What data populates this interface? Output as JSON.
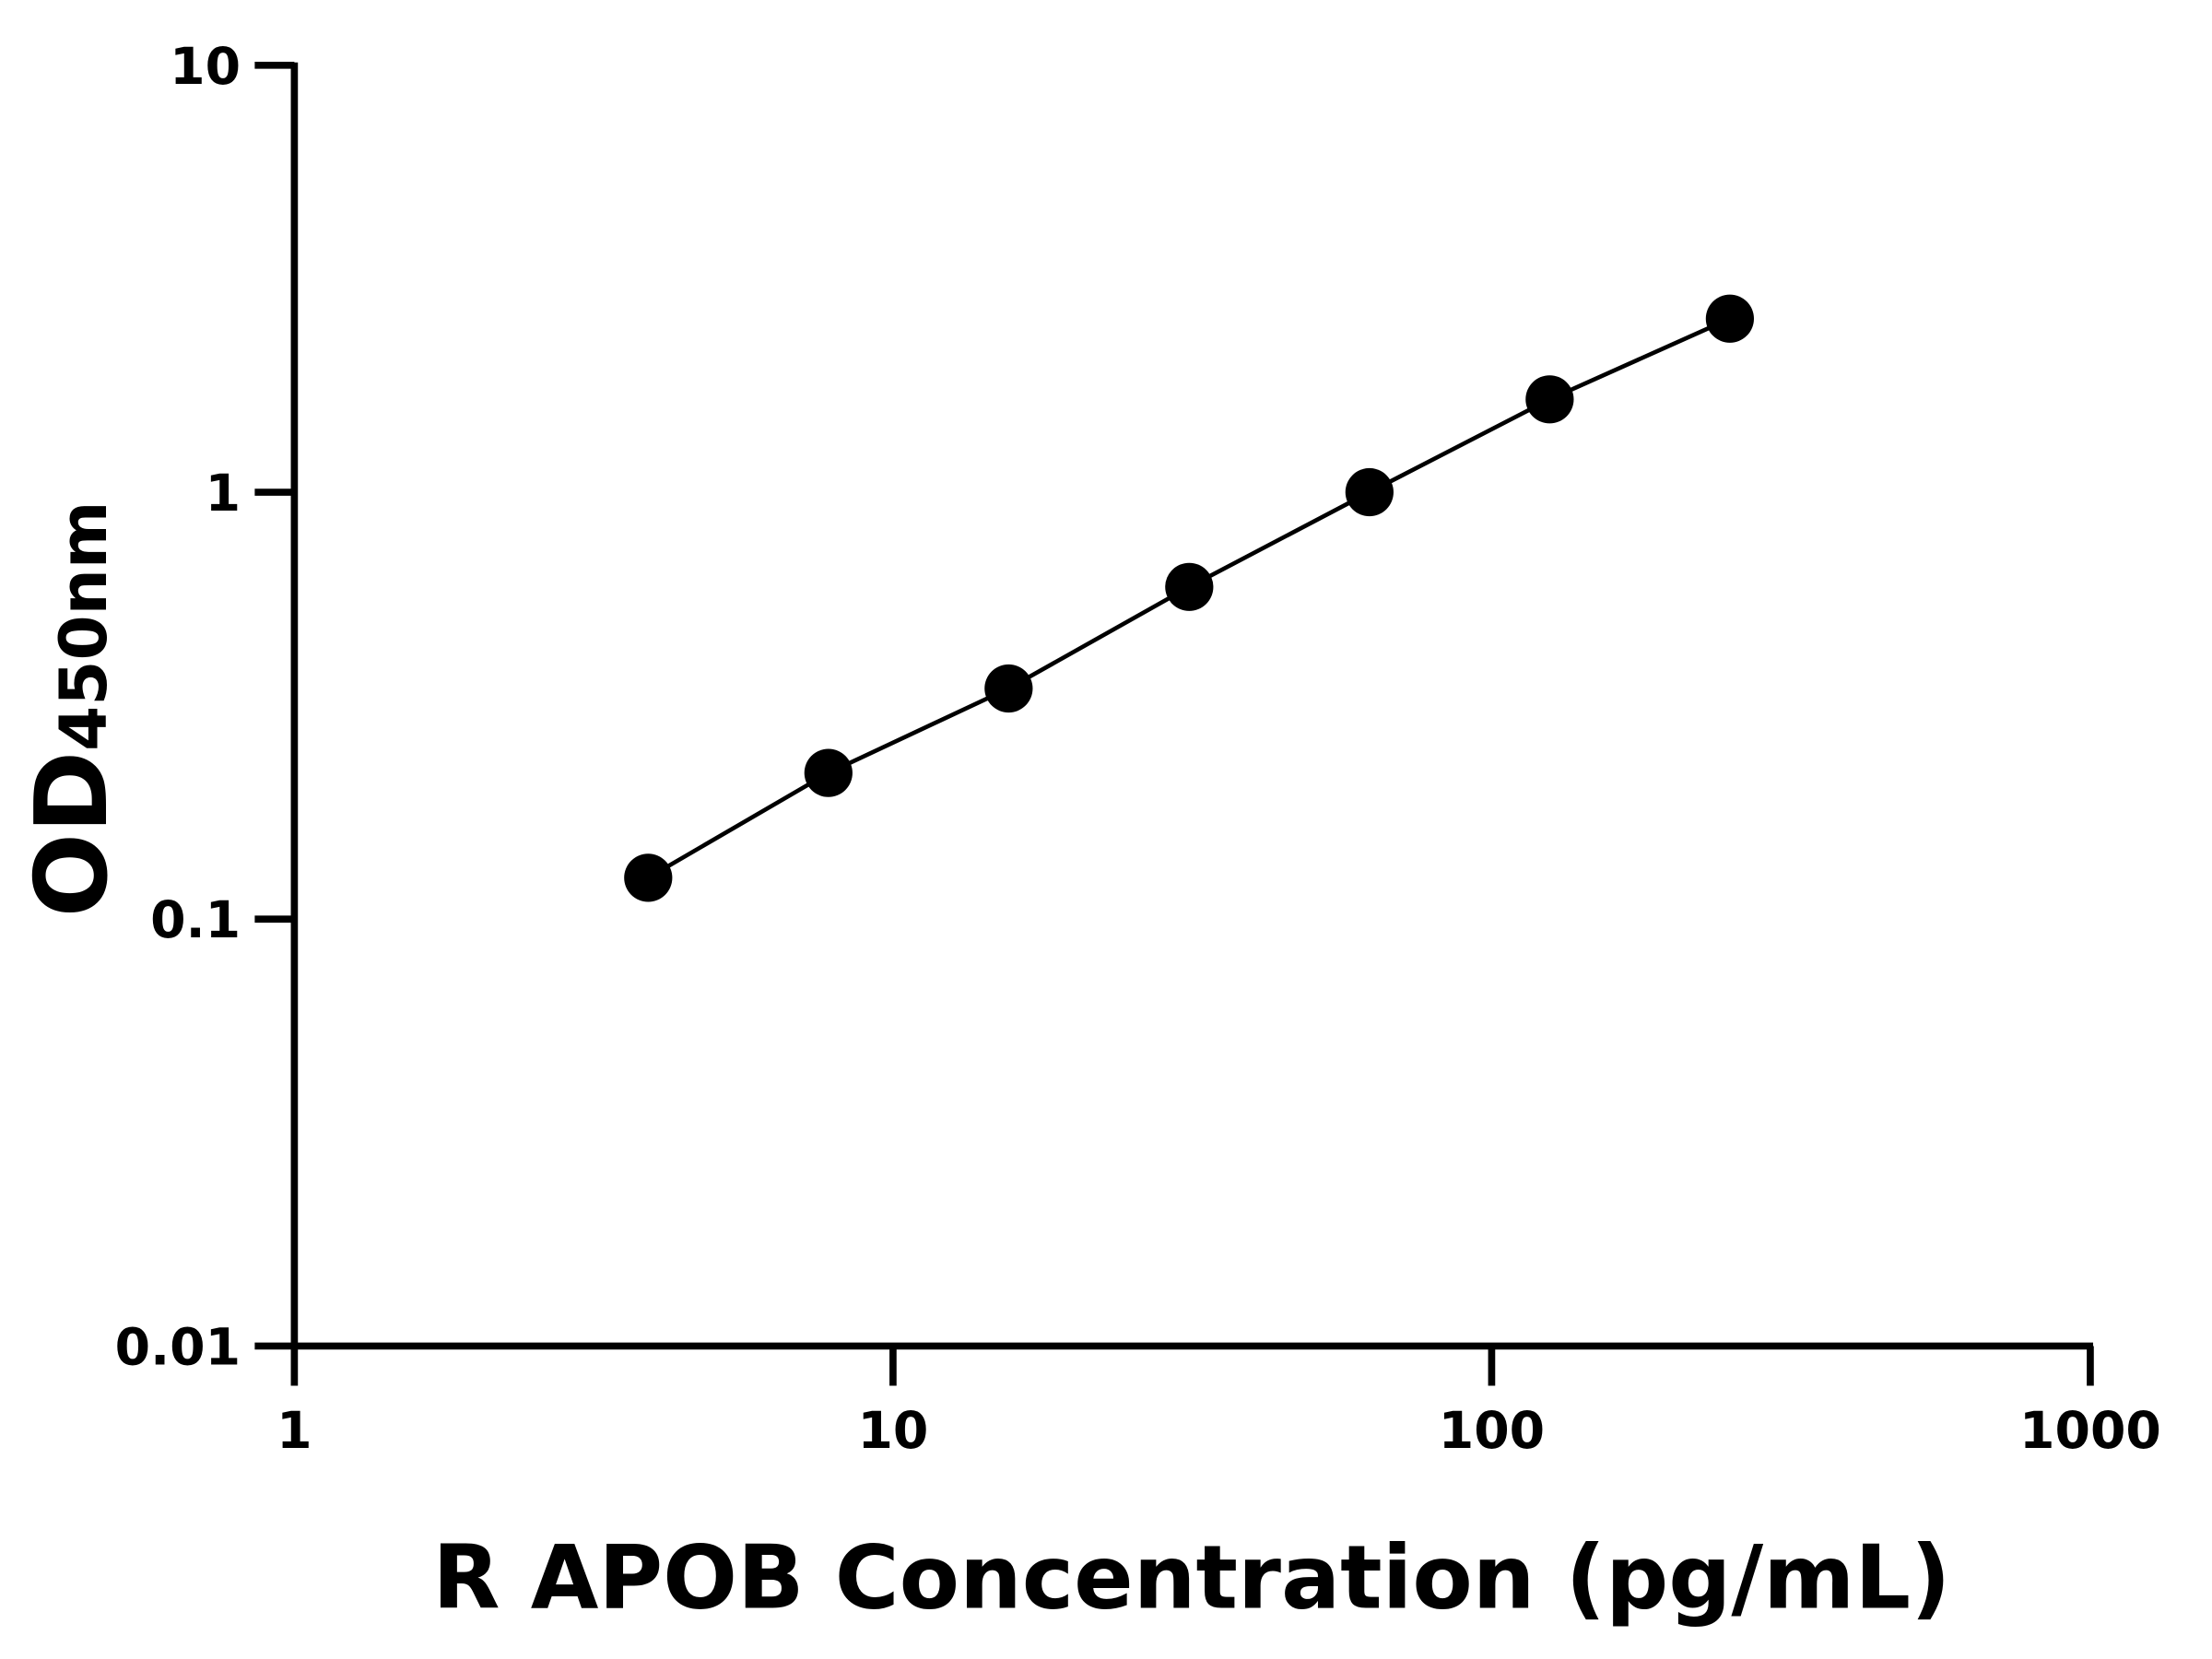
{
  "chart_data": {
    "type": "scatter",
    "x_label": "R APOB Concentration (pg/mL)",
    "y_label": {
      "main": "OD",
      "sub": "450nm"
    },
    "x": [
      3.9,
      7.8,
      15.6,
      31.25,
      62.5,
      125,
      250
    ],
    "values": [
      0.125,
      0.22,
      0.347,
      0.6,
      1.0,
      1.65,
      2.55
    ],
    "color": "#000000",
    "connect_line": true,
    "log_x": true,
    "log_y": true,
    "xlim": [
      1,
      1000
    ],
    "xticks": [
      1,
      10,
      100,
      1000
    ],
    "ylim": [
      0.01,
      10
    ],
    "yticks": [
      0.01,
      0.1,
      1,
      10
    ]
  }
}
